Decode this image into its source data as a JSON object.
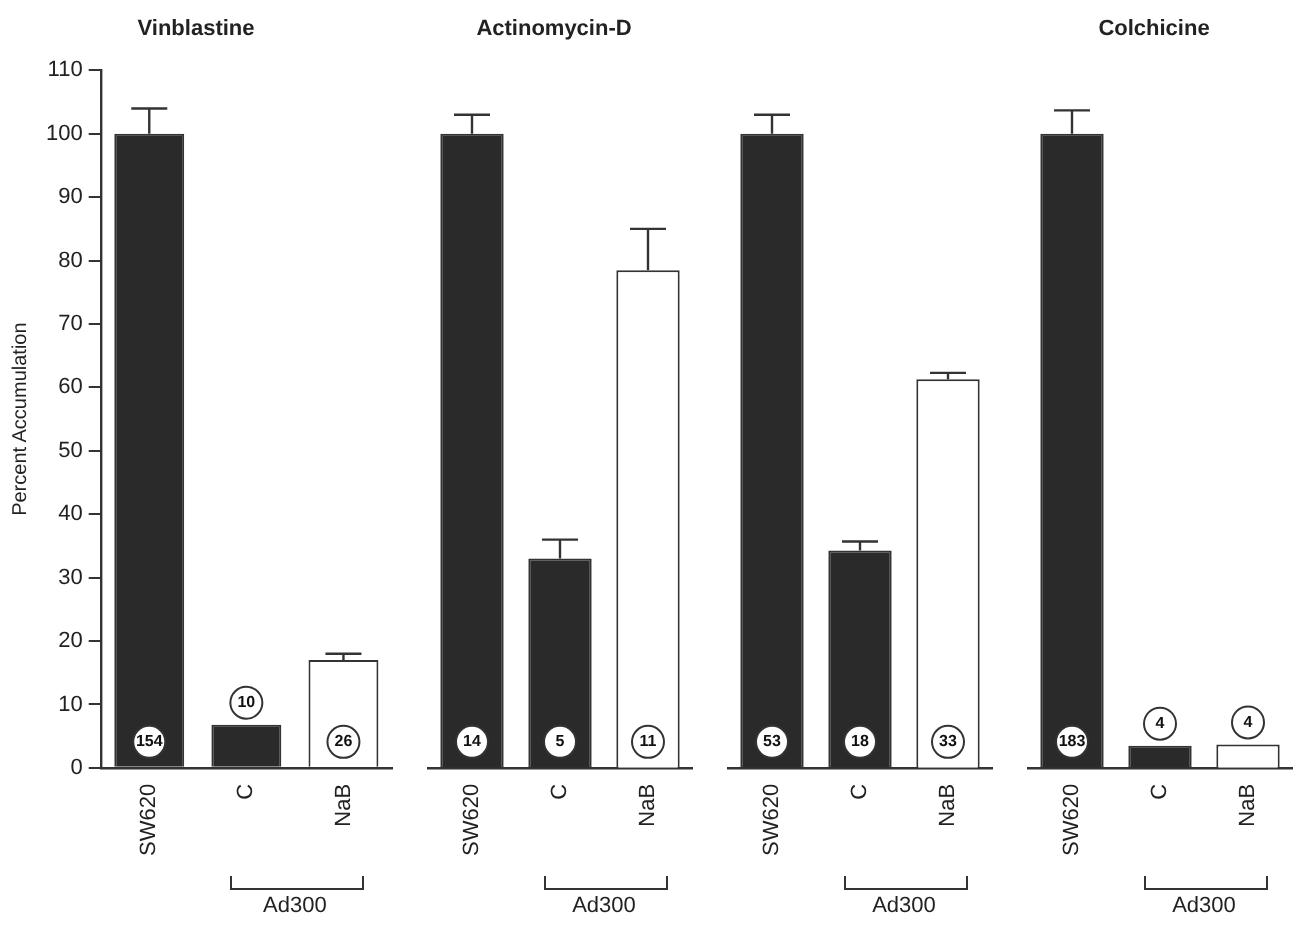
{
  "chart_data": [
    {
      "type": "bar",
      "title": "Vinblastine",
      "ylabel": "Percent Accumulation",
      "categories": [
        "SW620",
        "C",
        "NaB"
      ],
      "values": [
        100,
        6.8,
        17
      ],
      "colors": [
        "#2a2a2a",
        "#2a2a2a",
        "#ffffff"
      ],
      "errors": [
        [
          100,
          104
        ],
        null,
        [
          17,
          18
        ]
      ],
      "ylim": [
        0,
        110
      ],
      "yticks": [
        0,
        10,
        20,
        30,
        40,
        50,
        60,
        70,
        80,
        90,
        100,
        110
      ],
      "grid": false,
      "annotations": [
        "154",
        "10",
        "26",
        "Ad300"
      ]
    },
    {
      "type": "bar",
      "title": "Actinomycin-D",
      "categories": [
        "SW620",
        "C",
        "NaB"
      ],
      "values": [
        100,
        33,
        78.5
      ],
      "colors": [
        "#2a2a2a",
        "#2a2a2a",
        "#ffffff"
      ],
      "errors": [
        [
          100,
          103
        ],
        [
          33,
          36
        ],
        [
          78.5,
          85
        ]
      ],
      "ylim": [
        0,
        110
      ],
      "tick_labels": "x",
      "grid": false,
      "annotations": [
        "14",
        "5",
        "11",
        "Ad300"
      ]
    },
    {
      "type": "bar",
      "categories": [
        "SW620",
        "C",
        "NaB"
      ],
      "values": [
        100,
        34.3,
        61.3
      ],
      "colors": [
        "#2a2a2a",
        "#2a2a2a",
        "#ffffff"
      ],
      "errors": [
        [
          100,
          103
        ],
        [
          34.3,
          35.7
        ],
        [
          61.3,
          62.3
        ]
      ],
      "ylim": [
        0,
        110
      ],
      "tick_labels": "x",
      "grid": false,
      "annotations": [
        "53",
        "18",
        "33",
        "Ad300"
      ]
    },
    {
      "type": "bar",
      "title": "Colchicine",
      "categories": [
        "SW620",
        "C",
        "NaB"
      ],
      "values": [
        100,
        3.5,
        3.7
      ],
      "colors": [
        "#2a2a2a",
        "#2a2a2a",
        "#ffffff"
      ],
      "errors": [
        [
          100,
          103.7
        ],
        null,
        null
      ],
      "ylim": [
        0,
        110
      ],
      "tick_labels": "x",
      "grid": false,
      "annotations": [
        "183",
        "4",
        "4",
        "Ad300"
      ]
    }
  ]
}
